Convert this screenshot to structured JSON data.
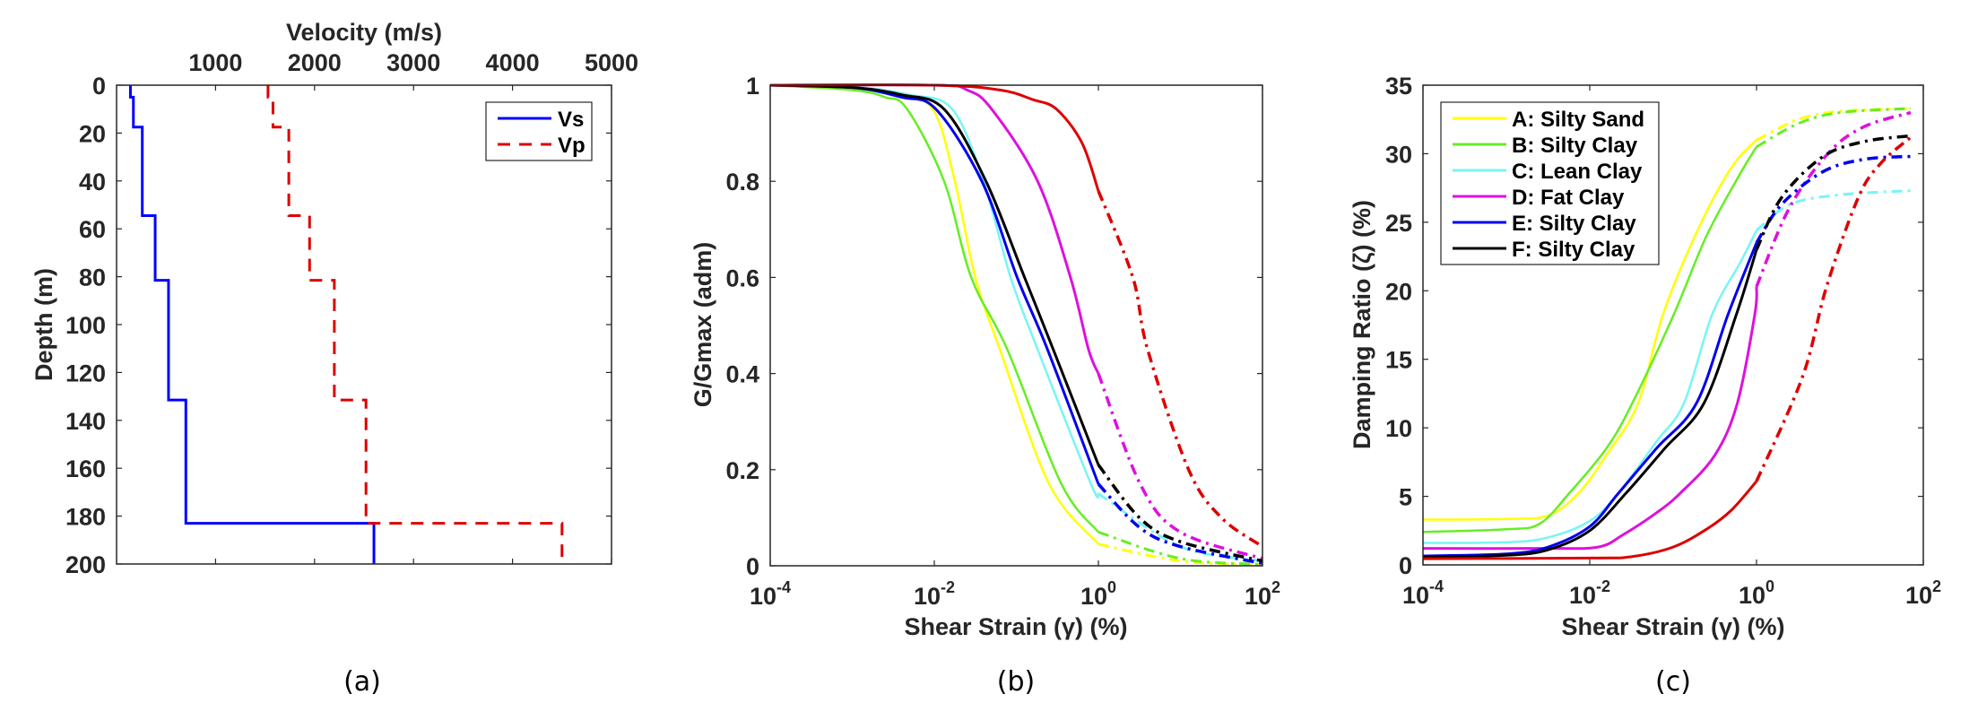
{
  "chart_data": [
    {
      "id": "a",
      "type": "line",
      "caption": "(a)",
      "title": "",
      "xlabel": "Velocity (m/s)",
      "ylabel": "Depth (m)",
      "x_axis_position": "top",
      "y_reversed": true,
      "xlim": [
        0,
        5000
      ],
      "ylim": [
        0,
        200
      ],
      "xticks": [
        1000,
        2000,
        3000,
        4000,
        5000
      ],
      "xtick_labels": [
        "1000",
        "2000",
        "3000",
        "4000",
        "5000"
      ],
      "yticks": [
        0,
        20,
        40,
        60,
        80,
        100,
        120,
        140,
        160,
        180,
        200
      ],
      "ytick_labels": [
        "0",
        "20",
        "40",
        "60",
        "80",
        "100",
        "120",
        "140",
        "160",
        "180",
        "200"
      ],
      "grid": false,
      "legend": {
        "position": "top-right",
        "entries": [
          "Vs",
          "Vp"
        ]
      },
      "series": [
        {
          "name": "Vs",
          "color": "#0000ff",
          "style": "solid",
          "layers": [
            {
              "top": 0,
              "bottom": 5,
              "velocity": 140
            },
            {
              "top": 5,
              "bottom": 17.5,
              "velocity": 170
            },
            {
              "top": 17.5,
              "bottom": 54.5,
              "velocity": 260
            },
            {
              "top": 54.5,
              "bottom": 81.5,
              "velocity": 390
            },
            {
              "top": 81.5,
              "bottom": 131.5,
              "velocity": 525
            },
            {
              "top": 131.5,
              "bottom": 183,
              "velocity": 700
            },
            {
              "top": 183,
              "bottom": 200,
              "velocity": 2600
            }
          ]
        },
        {
          "name": "Vp",
          "color": "#dd0000",
          "style": "dashed",
          "layers": [
            {
              "top": 0,
              "bottom": 5,
              "velocity": 1530
            },
            {
              "top": 5,
              "bottom": 17.5,
              "velocity": 1580
            },
            {
              "top": 17.5,
              "bottom": 54.5,
              "velocity": 1740
            },
            {
              "top": 54.5,
              "bottom": 81.5,
              "velocity": 1950
            },
            {
              "top": 81.5,
              "bottom": 131.5,
              "velocity": 2200
            },
            {
              "top": 131.5,
              "bottom": 183,
              "velocity": 2520
            },
            {
              "top": 183,
              "bottom": 200,
              "velocity": 4500
            }
          ]
        }
      ]
    },
    {
      "id": "b",
      "type": "line",
      "caption": "(b)",
      "title": "",
      "xlabel": "Shear Strain (γ) (%)",
      "ylabel": "G/Gmax (adm)",
      "xscale": "log",
      "xlim_log10": [
        -4,
        2
      ],
      "ylim": [
        0,
        1
      ],
      "xtick_exponents": [
        -4,
        -2,
        0,
        2
      ],
      "xtick_base": "10",
      "yticks": [
        0,
        0.2,
        0.4,
        0.6,
        0.8,
        1
      ],
      "ytick_labels": [
        "0",
        "0.2",
        "0.4",
        "0.6",
        "0.8",
        "1"
      ],
      "grid": false,
      "note": "solid up to 1% strain, dash-dot beyond (extrapolated)",
      "solid_until_log10": 0,
      "series": [
        {
          "name": "A: Silty Sand",
          "color": "#ffff00",
          "points": [
            [
              -4,
              1
            ],
            [
              -3,
              0.995
            ],
            [
              -2.5,
              0.985
            ],
            [
              -2.02,
              0.95
            ],
            [
              -1.75,
              0.8
            ],
            [
              -1.5,
              0.6
            ],
            [
              -1.2,
              0.45
            ],
            [
              -0.6,
              0.17
            ],
            [
              0,
              0.045
            ],
            [
              1,
              0.01
            ],
            [
              2,
              0.002
            ]
          ]
        },
        {
          "name": "B: Silty Clay",
          "color": "#66ee22",
          "points": [
            [
              -4,
              1
            ],
            [
              -3,
              0.99
            ],
            [
              -2.6,
              0.975
            ],
            [
              -2.33,
              0.95
            ],
            [
              -1.88,
              0.8
            ],
            [
              -1.55,
              0.6
            ],
            [
              -1.11,
              0.45
            ],
            [
              -0.45,
              0.17
            ],
            [
              0,
              0.07
            ],
            [
              1,
              0.015
            ],
            [
              2,
              0.003
            ]
          ]
        },
        {
          "name": "C: Lean Clay",
          "color": "#77f5f5",
          "points": [
            [
              -4,
              1
            ],
            [
              -3,
              0.997
            ],
            [
              -2.3,
              0.98
            ],
            [
              -1.78,
              0.95
            ],
            [
              -1.4,
              0.8
            ],
            [
              -1.07,
              0.6
            ],
            [
              -0.74,
              0.45
            ],
            [
              -0.09,
              0.17
            ],
            [
              0,
              0.15
            ],
            [
              1,
              0.04
            ],
            [
              2,
              0.01
            ]
          ]
        },
        {
          "name": "D: Fat Clay",
          "color": "#dd11dd",
          "points": [
            [
              -4,
              1
            ],
            [
              -2,
              1
            ],
            [
              -1.6,
              0.99
            ],
            [
              -1.3,
              0.95
            ],
            [
              -0.74,
              0.8
            ],
            [
              -0.34,
              0.6
            ],
            [
              -0.12,
              0.45
            ],
            [
              0,
              0.4
            ],
            [
              0.51,
              0.17
            ],
            [
              1,
              0.07
            ],
            [
              2,
              0.015
            ]
          ]
        },
        {
          "name": "E: Silty Clay",
          "color": "#0000ee",
          "points": [
            [
              -4,
              1
            ],
            [
              -3,
              0.995
            ],
            [
              -2.4,
              0.975
            ],
            [
              -1.98,
              0.95
            ],
            [
              -1.42,
              0.8
            ],
            [
              -0.99,
              0.6
            ],
            [
              -0.62,
              0.45
            ],
            [
              0,
              0.17
            ],
            [
              0.5,
              0.08
            ],
            [
              1,
              0.04
            ],
            [
              2,
              0.005
            ]
          ]
        },
        {
          "name": "F: Silty Clay",
          "color": "#000000",
          "points": [
            [
              -4,
              1
            ],
            [
              -3,
              0.995
            ],
            [
              -2.4,
              0.98
            ],
            [
              -1.88,
              0.95
            ],
            [
              -1.37,
              0.8
            ],
            [
              -0.9,
              0.6
            ],
            [
              -0.55,
              0.45
            ],
            [
              0,
              0.21
            ],
            [
              0.5,
              0.1
            ],
            [
              1,
              0.05
            ],
            [
              2,
              0.01
            ]
          ]
        },
        {
          "name": "Red",
          "color": "#dd0000",
          "points": [
            [
              -4,
              1
            ],
            [
              -2,
              1
            ],
            [
              -1.2,
              0.99
            ],
            [
              -0.8,
              0.97
            ],
            [
              -0.51,
              0.95
            ],
            [
              -0.2,
              0.88
            ],
            [
              0,
              0.78
            ],
            [
              0.42,
              0.6
            ],
            [
              0.6,
              0.45
            ],
            [
              1.1,
              0.2
            ],
            [
              1.5,
              0.1
            ],
            [
              2,
              0.04
            ]
          ]
        }
      ]
    },
    {
      "id": "c",
      "type": "line",
      "caption": "(c)",
      "title": "",
      "xlabel": "Shear Strain (γ) (%)",
      "ylabel": "Damping Ratio (ζ) (%)",
      "xscale": "log",
      "xlim_log10": [
        -4,
        2
      ],
      "ylim": [
        0,
        35
      ],
      "xtick_exponents": [
        -4,
        -2,
        0,
        2
      ],
      "xtick_base": "10",
      "yticks": [
        0,
        5,
        10,
        15,
        20,
        25,
        30,
        35
      ],
      "ytick_labels": [
        "0",
        "5",
        "10",
        "15",
        "20",
        "25",
        "30",
        "35"
      ],
      "grid": false,
      "solid_until_log10": 0,
      "legend": {
        "position": "top-left",
        "entries": [
          {
            "label": "A: Silty Sand",
            "color": "#ffff00"
          },
          {
            "label": "B: Silty Clay",
            "color": "#66ee22"
          },
          {
            "label": "C: Lean Clay",
            "color": "#77f5f5"
          },
          {
            "label": "D: Fat Clay",
            "color": "#dd11dd"
          },
          {
            "label": "E: Silty Clay",
            "color": "#0000ee"
          },
          {
            "label": "F: Silty Clay",
            "color": "#000000"
          }
        ]
      },
      "series": [
        {
          "name": "A: Silty Sand",
          "color": "#ffff00",
          "points": [
            [
              -4,
              3.3
            ],
            [
              -3,
              3.35
            ],
            [
              -2.5,
              3.6
            ],
            [
              -2.14,
              5.2
            ],
            [
              -1.8,
              8
            ],
            [
              -1.42,
              11.8
            ],
            [
              -1.12,
              18.3
            ],
            [
              -0.7,
              24.5
            ],
            [
              -0.3,
              29
            ],
            [
              0,
              31
            ],
            [
              0.5,
              32.5
            ],
            [
              1,
              33.1
            ],
            [
              1.85,
              33.3
            ]
          ]
        },
        {
          "name": "B: Silty Clay",
          "color": "#66ee22",
          "points": [
            [
              -4,
              2.4
            ],
            [
              -3,
              2.6
            ],
            [
              -2.6,
              3
            ],
            [
              -2.25,
              5.2
            ],
            [
              -1.8,
              8.5
            ],
            [
              -1.49,
              11.8
            ],
            [
              -0.99,
              18.3
            ],
            [
              -0.6,
              24
            ],
            [
              -0.2,
              28.5
            ],
            [
              0,
              30.5
            ],
            [
              0.5,
              32.2
            ],
            [
              1,
              33
            ],
            [
              1.85,
              33.3
            ]
          ]
        },
        {
          "name": "C: Lean Clay",
          "color": "#77f5f5",
          "points": [
            [
              -4,
              1.6
            ],
            [
              -3,
              1.65
            ],
            [
              -2.5,
              2
            ],
            [
              -2,
              3.2
            ],
            [
              -1.66,
              5.2
            ],
            [
              -1.2,
              9
            ],
            [
              -0.87,
              11.8
            ],
            [
              -0.53,
              18.3
            ],
            [
              -0.2,
              22
            ],
            [
              0,
              24.4
            ],
            [
              0.4,
              26.3
            ],
            [
              1,
              27
            ],
            [
              1.85,
              27.3
            ]
          ]
        },
        {
          "name": "D: Fat Clay",
          "color": "#dd11dd",
          "points": [
            [
              -4,
              1.2
            ],
            [
              -2.5,
              1.2
            ],
            [
              -1.9,
              1.3
            ],
            [
              -1.6,
              2.2
            ],
            [
              -1.2,
              3.8
            ],
            [
              -0.92,
              5.2
            ],
            [
              -0.5,
              8
            ],
            [
              -0.23,
              11.8
            ],
            [
              -0.02,
              18.3
            ],
            [
              0,
              20.3
            ],
            [
              0.39,
              26
            ],
            [
              0.87,
              30.1
            ],
            [
              1.3,
              32
            ],
            [
              1.85,
              33
            ]
          ]
        },
        {
          "name": "E: Silty Clay",
          "color": "#0000ee",
          "points": [
            [
              -4,
              0.65
            ],
            [
              -3,
              0.8
            ],
            [
              -2.5,
              1.3
            ],
            [
              -2,
              2.8
            ],
            [
              -1.66,
              5.2
            ],
            [
              -1.2,
              8.5
            ],
            [
              -0.72,
              11.8
            ],
            [
              -0.34,
              18.3
            ],
            [
              0,
              23.5
            ],
            [
              0.3,
              26.3
            ],
            [
              0.8,
              28.7
            ],
            [
              1.3,
              29.6
            ],
            [
              1.85,
              29.8
            ]
          ]
        },
        {
          "name": "F: Silty Clay",
          "color": "#000000",
          "points": [
            [
              -4,
              0.55
            ],
            [
              -3,
              0.7
            ],
            [
              -2.5,
              1.1
            ],
            [
              -2,
              2.5
            ],
            [
              -1.57,
              5.2
            ],
            [
              -1.1,
              8.5
            ],
            [
              -0.63,
              11.8
            ],
            [
              -0.24,
              18.3
            ],
            [
              0,
              23
            ],
            [
              0.3,
              26.8
            ],
            [
              0.8,
              29.8
            ],
            [
              1.3,
              30.9
            ],
            [
              1.85,
              31.3
            ]
          ]
        },
        {
          "name": "Red",
          "color": "#dd0000",
          "points": [
            [
              -4,
              0.45
            ],
            [
              -2,
              0.5
            ],
            [
              -1.5,
              0.6
            ],
            [
              -1,
              1.3
            ],
            [
              -0.6,
              2.6
            ],
            [
              -0.3,
              4
            ],
            [
              0,
              6.1
            ],
            [
              0.55,
              13.7
            ],
            [
              0.84,
              20.3
            ],
            [
              1.22,
              26.8
            ],
            [
              1.49,
              29.3
            ],
            [
              1.85,
              31.2
            ]
          ]
        }
      ]
    }
  ]
}
